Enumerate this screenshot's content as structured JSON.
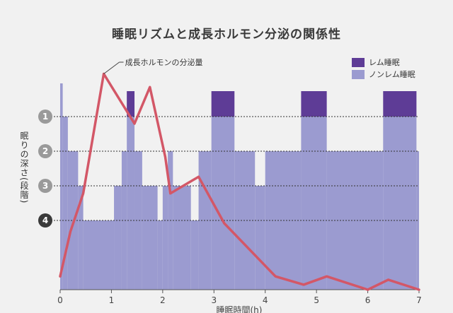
{
  "chart_data": {
    "type": "area",
    "title": "睡眠リズムと成長ホルモン分泌の関係性",
    "xlabel": "睡眠時間(h)",
    "ylabel": "眠りの深さ(段階)",
    "xlim": [
      0,
      7
    ],
    "x_ticks": [
      "0",
      "1",
      "2",
      "3",
      "4",
      "5",
      "6",
      "7"
    ],
    "y_levels": [
      "1",
      "2",
      "3",
      "4"
    ],
    "legend_position": "top-right",
    "legend": [
      {
        "name": "レム睡眠",
        "color": "#5e3c96"
      },
      {
        "name": "ノンレム睡眠",
        "color": "#9b9bd0"
      }
    ],
    "sleep_stage": [
      {
        "x": 0.0,
        "stage": 0.0
      },
      {
        "x": 0.05,
        "stage": 1
      },
      {
        "x": 0.15,
        "stage": 2
      },
      {
        "x": 0.35,
        "stage": 3
      },
      {
        "x": 0.45,
        "stage": 4
      },
      {
        "x": 1.05,
        "stage": 3
      },
      {
        "x": 1.2,
        "stage": 2
      },
      {
        "x": 1.3,
        "stage": 1
      },
      {
        "x": 1.45,
        "stage": 2
      },
      {
        "x": 1.6,
        "stage": 3
      },
      {
        "x": 1.9,
        "stage": 4
      },
      {
        "x": 2.0,
        "stage": 3
      },
      {
        "x": 2.1,
        "stage": 2
      },
      {
        "x": 2.2,
        "stage": 3
      },
      {
        "x": 2.55,
        "stage": 4
      },
      {
        "x": 2.7,
        "stage": 2
      },
      {
        "x": 2.95,
        "stage": 1
      },
      {
        "x": 3.4,
        "stage": 2
      },
      {
        "x": 3.8,
        "stage": 3
      },
      {
        "x": 4.0,
        "stage": 2
      },
      {
        "x": 4.7,
        "stage": 1
      },
      {
        "x": 5.2,
        "stage": 2
      },
      {
        "x": 6.3,
        "stage": 1
      },
      {
        "x": 6.95,
        "stage": 2
      }
    ],
    "sleep_stage_end": 7.0,
    "rem_periods": [
      {
        "start": 1.3,
        "end": 1.45
      },
      {
        "start": 2.95,
        "end": 3.4
      },
      {
        "start": 4.7,
        "end": 5.2
      },
      {
        "start": 6.3,
        "end": 6.95
      }
    ],
    "hormone": {
      "name": "成長ホルモンの分泌量",
      "points": [
        {
          "x": 0.0,
          "level": 0.4
        },
        {
          "x": 0.2,
          "level": 1.75
        },
        {
          "x": 0.45,
          "level": 2.9
        },
        {
          "x": 0.85,
          "level": 6.5
        },
        {
          "x": 1.45,
          "level": 5.0
        },
        {
          "x": 1.75,
          "level": 6.1
        },
        {
          "x": 2.05,
          "level": 4.0
        },
        {
          "x": 2.15,
          "level": 2.9
        },
        {
          "x": 2.7,
          "level": 3.4
        },
        {
          "x": 3.2,
          "level": 2.0
        },
        {
          "x": 4.2,
          "level": 0.4
        },
        {
          "x": 4.75,
          "level": 0.15
        },
        {
          "x": 5.2,
          "level": 0.4
        },
        {
          "x": 6.0,
          "level": 0.0
        },
        {
          "x": 6.4,
          "level": 0.3
        },
        {
          "x": 7.0,
          "level": 0.0
        }
      ]
    }
  }
}
